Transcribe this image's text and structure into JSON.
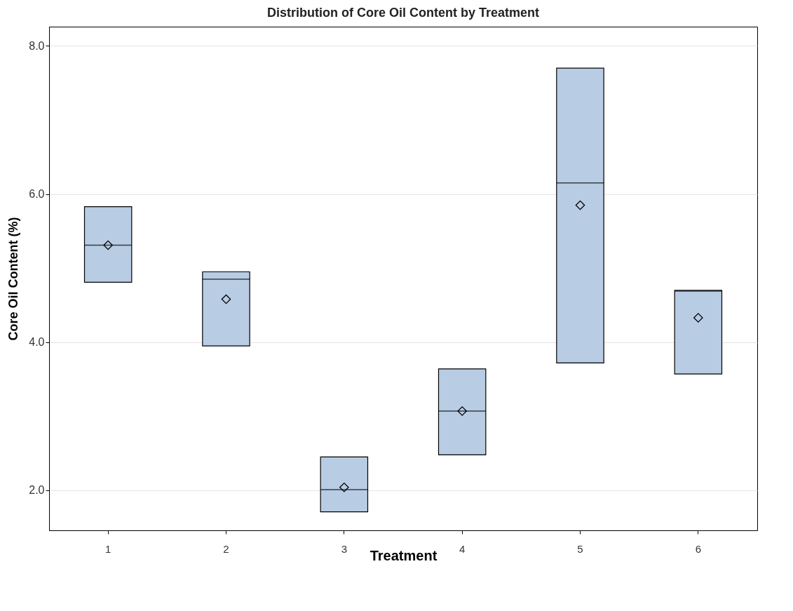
{
  "chart_data": {
    "type": "box",
    "title": "Distribution of Core Oil Content by Treatment",
    "xlabel": "Treatment",
    "ylabel": "Core Oil Content (%)",
    "categories": [
      "1",
      "2",
      "3",
      "4",
      "5",
      "6"
    ],
    "series": [
      {
        "color": "#b8cce4",
        "boxes": [
          {
            "low": 4.81,
            "q1": 4.81,
            "median": 5.31,
            "q3": 5.83,
            "high": 5.83,
            "mean": 5.31
          },
          {
            "low": 3.95,
            "q1": 3.95,
            "median": 4.85,
            "q3": 4.95,
            "high": 4.95,
            "mean": 4.58
          },
          {
            "low": 1.71,
            "q1": 1.71,
            "median": 2.01,
            "q3": 2.45,
            "high": 2.45,
            "mean": 2.04
          },
          {
            "low": 2.48,
            "q1": 2.48,
            "median": 3.07,
            "q3": 3.64,
            "high": 3.64,
            "mean": 3.07
          },
          {
            "low": 3.72,
            "q1": 3.72,
            "median": 6.15,
            "q3": 7.7,
            "high": 7.7,
            "mean": 5.85
          },
          {
            "low": 3.57,
            "q1": 3.57,
            "median": 4.69,
            "q3": 4.7,
            "high": 4.7,
            "mean": 4.33
          }
        ]
      }
    ],
    "ylim": [
      1.46,
      8.26
    ],
    "yticks": [
      {
        "value": 2,
        "label": "2.0"
      },
      {
        "value": 4,
        "label": "4.0"
      },
      {
        "value": 6,
        "label": "6.0"
      },
      {
        "value": 8,
        "label": "8.0"
      }
    ],
    "grid": "y",
    "marker": "diamond"
  }
}
